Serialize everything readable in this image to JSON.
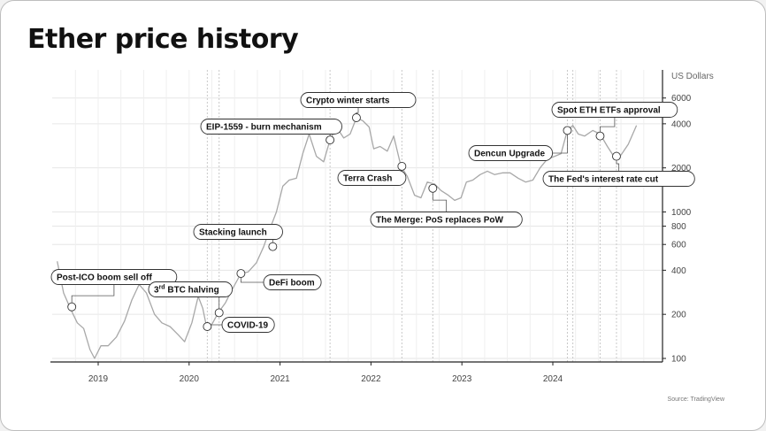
{
  "title": "Ether price history",
  "source": "Source: TradingView",
  "chart_data": {
    "type": "line",
    "title": "Ether price history",
    "ylabel": "US Dollars",
    "yscale": "log",
    "ylim": [
      95,
      8500
    ],
    "xlim": [
      2018.55,
      2025.2
    ],
    "grid": true,
    "x_ticks": [
      2019,
      2020,
      2021,
      2022,
      2023,
      2024
    ],
    "y_ticks": [
      100,
      200,
      400,
      600,
      800,
      1000,
      2000,
      4000,
      6000
    ],
    "series": [
      {
        "x": [
          2018.55,
          2018.62,
          2018.7,
          2018.77,
          2018.84,
          2018.91,
          2018.96,
          2019.03,
          2019.11,
          2019.2,
          2019.29,
          2019.37,
          2019.45,
          2019.53,
          2019.62,
          2019.7,
          2019.79,
          2019.88,
          2019.95,
          2020.03,
          2020.1,
          2020.15,
          2020.2,
          2020.26,
          2020.32,
          2020.4,
          2020.48,
          2020.57,
          2020.65,
          2020.74,
          2020.82,
          2020.9,
          2020.96,
          2021.03,
          2021.1,
          2021.18,
          2021.25,
          2021.32,
          2021.4,
          2021.48,
          2021.55,
          2021.62,
          2021.7,
          2021.77,
          2021.84,
          2021.91,
          2021.98,
          2022.03,
          2022.1,
          2022.18,
          2022.25,
          2022.33,
          2022.4,
          2022.48,
          2022.55,
          2022.62,
          2022.7,
          2022.77,
          2022.85,
          2022.92,
          2022.99,
          2023.05,
          2023.12,
          2023.2,
          2023.28,
          2023.36,
          2023.45,
          2023.53,
          2023.62,
          2023.7,
          2023.78,
          2023.86,
          2023.94,
          2024.02,
          2024.09,
          2024.16,
          2024.22,
          2024.28,
          2024.35,
          2024.44,
          2024.52,
          2024.6,
          2024.67,
          2024.75,
          2024.83,
          2024.92
        ],
        "y": [
          460,
          280,
          215,
          175,
          160,
          115,
          100,
          122,
          122,
          140,
          180,
          250,
          320,
          280,
          200,
          175,
          165,
          145,
          130,
          175,
          265,
          220,
          155,
          175,
          205,
          240,
          300,
          380,
          390,
          450,
          580,
          800,
          1000,
          1500,
          1650,
          1700,
          2500,
          3400,
          2400,
          2200,
          3100,
          3800,
          3200,
          3400,
          4400,
          4200,
          3800,
          2700,
          2800,
          2600,
          3300,
          2050,
          1750,
          1300,
          1250,
          1600,
          1550,
          1400,
          1300,
          1200,
          1250,
          1600,
          1650,
          1800,
          1900,
          1800,
          1850,
          1850,
          1700,
          1600,
          1650,
          2000,
          2300,
          2400,
          2500,
          3600,
          3900,
          3400,
          3300,
          3600,
          3400,
          2800,
          2400,
          2450,
          2900,
          3900
        ]
      }
    ],
    "annotations": [
      {
        "label": "Post-ICO boom sell off",
        "x": 2018.71,
        "y": 225
      },
      {
        "label": "3rd BTC halving",
        "x": 2020.33,
        "y": 205
      },
      {
        "label": "COVID-19",
        "x": 2020.2,
        "y": 165
      },
      {
        "label": "Stacking launch",
        "x": 2020.92,
        "y": 580
      },
      {
        "label": "DeFi boom",
        "x": 2020.57,
        "y": 380
      },
      {
        "label": "EIP-1559 - burn mechanism",
        "x": 2021.55,
        "y": 3100
      },
      {
        "label": "Crypto winter starts",
        "x": 2021.84,
        "y": 4400
      },
      {
        "label": "Terra Crash",
        "x": 2022.34,
        "y": 2050
      },
      {
        "label": "The Merge: PoS replaces PoW",
        "x": 2022.68,
        "y": 1450
      },
      {
        "label": "Dencun Upgrade",
        "x": 2024.16,
        "y": 3600
      },
      {
        "label": "Spot ETH ETFs approval",
        "x": 2024.52,
        "y": 3300
      },
      {
        "label": "The Fed's interest rate cut",
        "x": 2024.7,
        "y": 2400
      }
    ],
    "vertical_event_lines_x": [
      2020.2,
      2020.33,
      2021.55,
      2022.34,
      2022.68,
      2024.16,
      2024.22,
      2024.52,
      2024.7
    ],
    "colors": {
      "line": "#a8a8a8",
      "text": "#111111",
      "grid": "#e6e6e6"
    }
  }
}
